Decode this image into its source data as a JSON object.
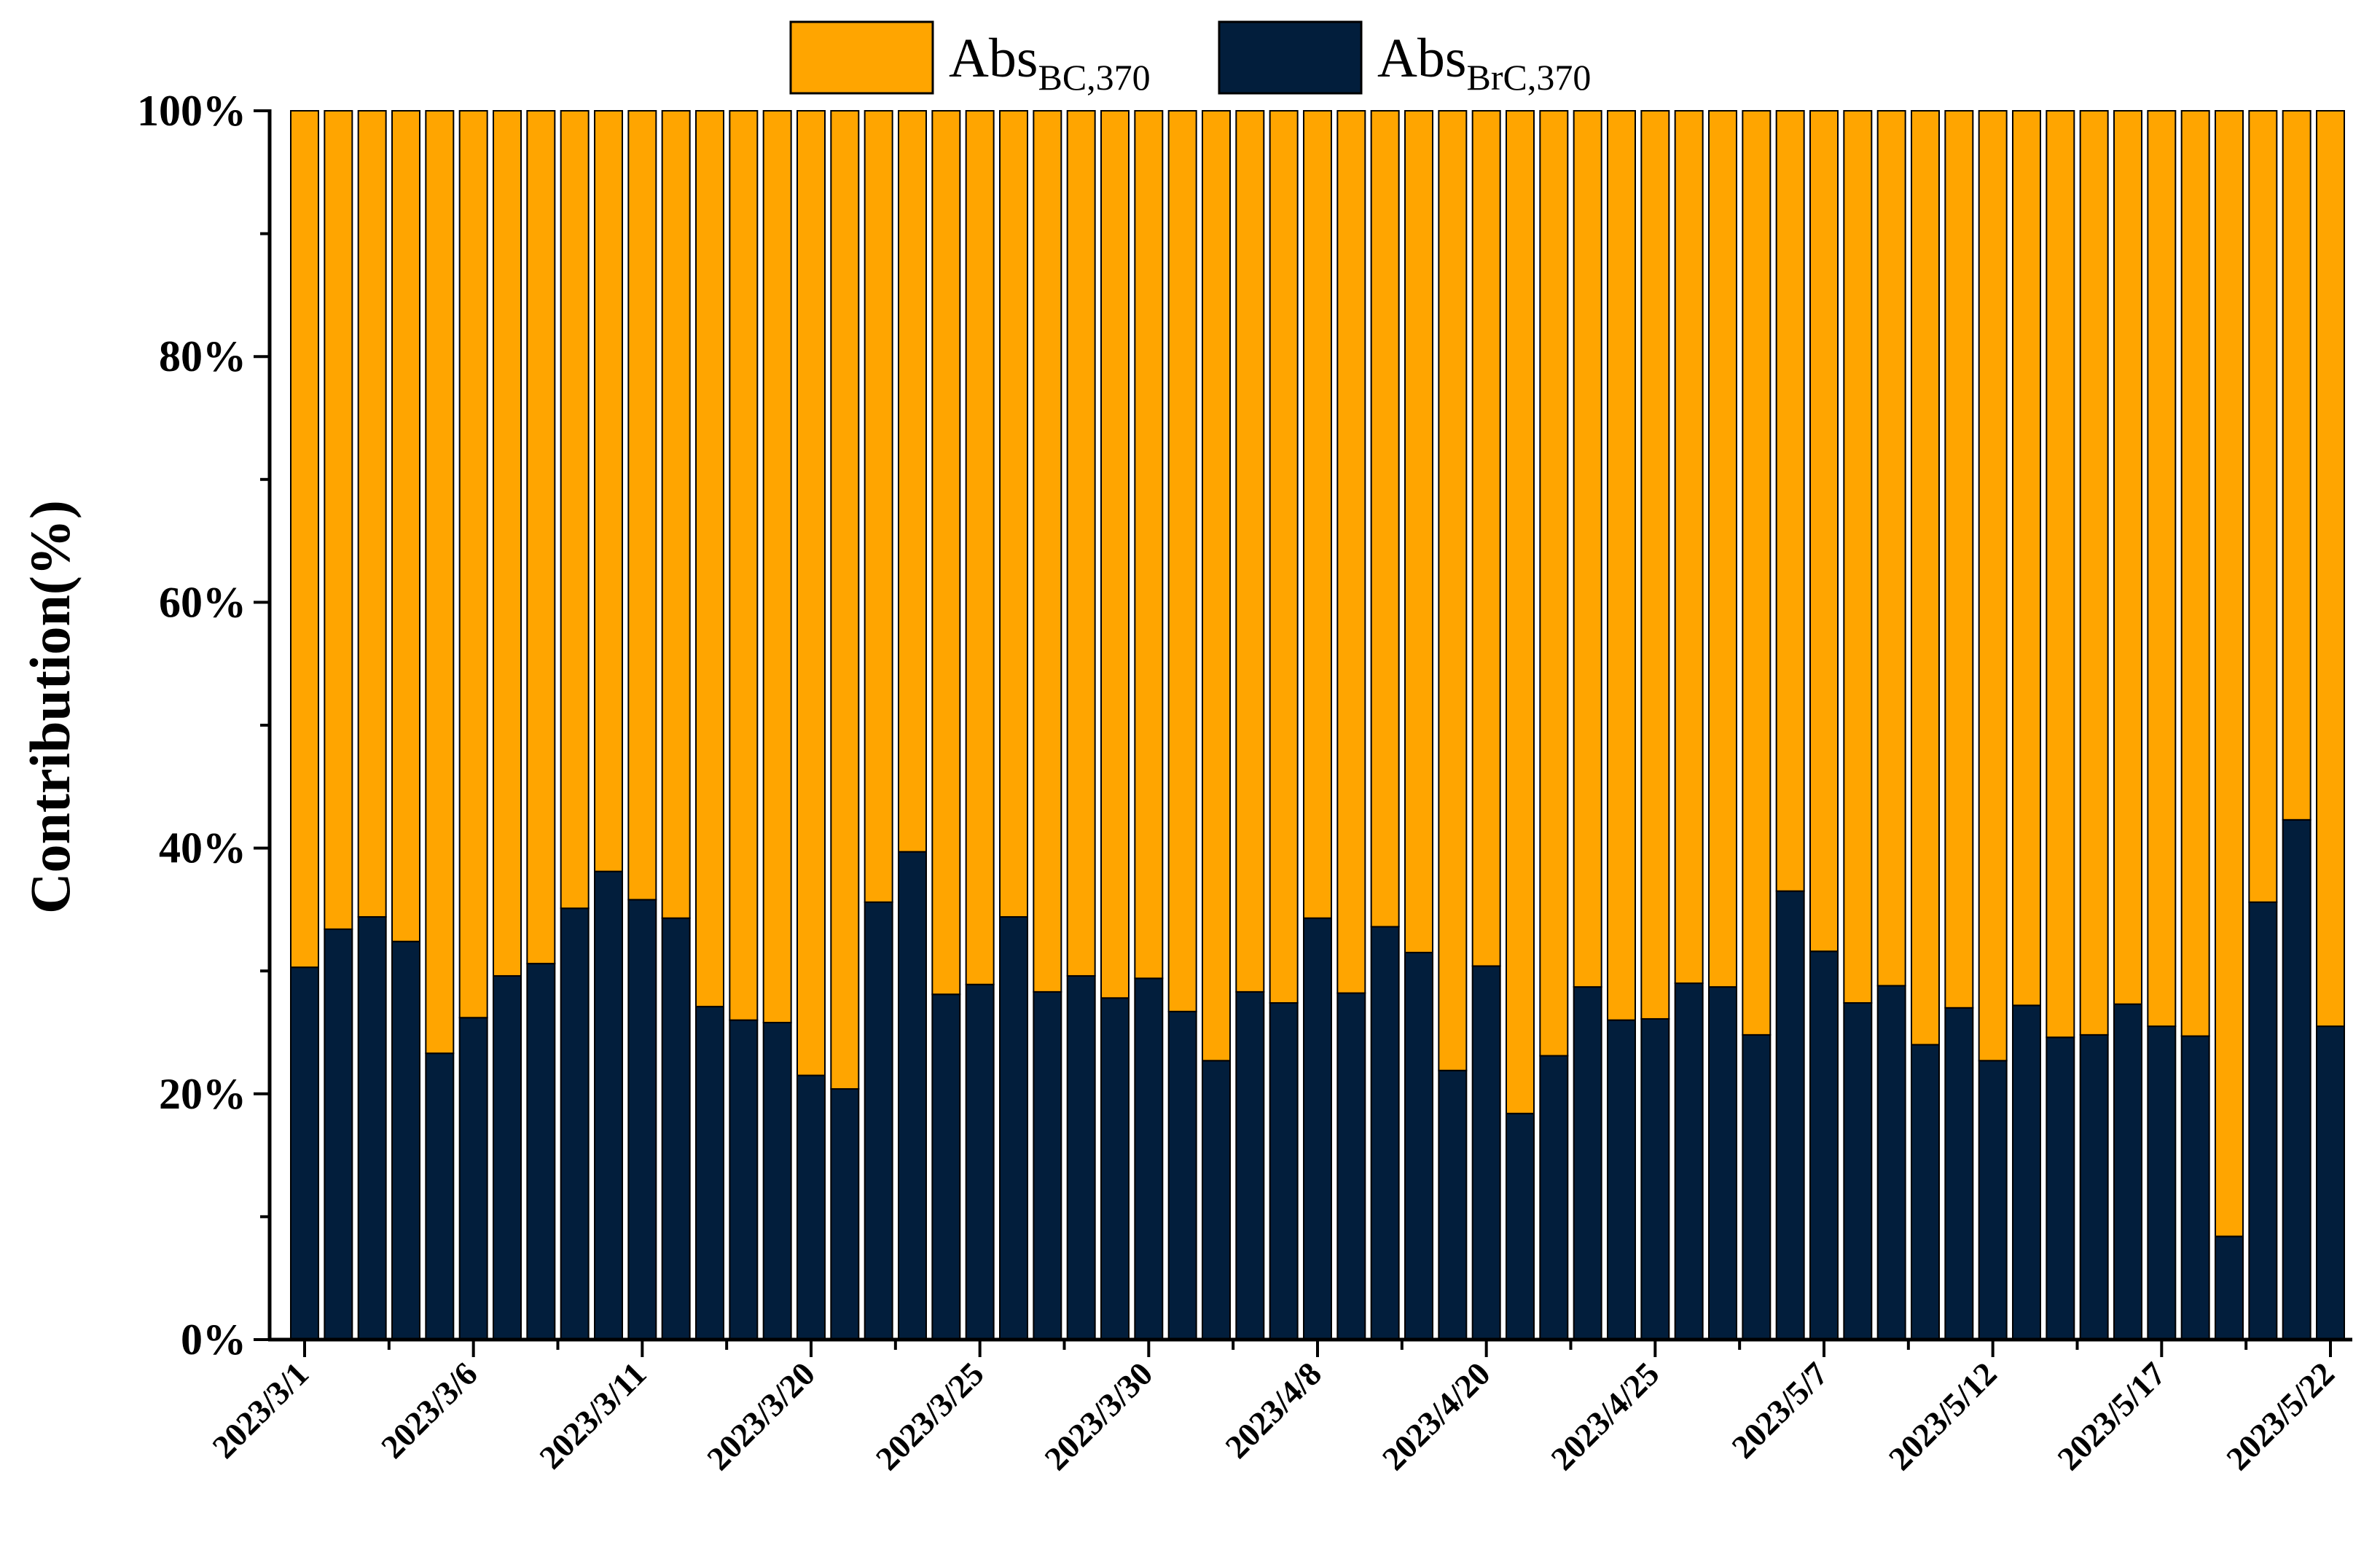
{
  "chart_data": {
    "type": "bar",
    "stacked": true,
    "percent_stacked": true,
    "ylabel": "Contribution(%)",
    "xlabel": "",
    "ylim": [
      0,
      100
    ],
    "y_ticks": [
      "0%",
      "20%",
      "40%",
      "60%",
      "80%",
      "100%"
    ],
    "x_tick_labels": [
      "2023/3/1",
      "2023/3/6",
      "2023/3/11",
      "2023/3/20",
      "2023/3/25",
      "2023/3/30",
      "2023/4/8",
      "2023/4/20",
      "2023/4/25",
      "2023/5/7",
      "2023/5/12",
      "2023/5/17",
      "2023/5/22"
    ],
    "x_tick_indices": [
      0,
      5,
      10,
      15,
      20,
      25,
      30,
      35,
      40,
      45,
      50,
      55,
      60
    ],
    "grid": false,
    "legend_position": "top-center",
    "series": [
      {
        "name_main": "Abs",
        "name_sub": "BrC,370",
        "color": "#021E3C",
        "values": [
          30.3,
          33.4,
          34.4,
          32.4,
          23.3,
          26.2,
          29.6,
          30.6,
          35.1,
          38.1,
          35.8,
          34.3,
          27.1,
          26.0,
          25.8,
          21.5,
          20.4,
          35.6,
          39.7,
          28.1,
          28.9,
          34.4,
          28.3,
          29.6,
          27.8,
          29.4,
          26.7,
          22.7,
          28.3,
          27.4,
          34.3,
          28.2,
          33.6,
          31.5,
          21.9,
          30.4,
          18.4,
          23.1,
          28.7,
          26.0,
          26.1,
          29.0,
          28.7,
          24.8,
          36.5,
          31.6,
          27.4,
          28.8,
          24.0,
          27.0,
          22.7,
          27.2,
          24.6,
          24.8,
          27.3,
          25.5,
          24.7,
          8.4,
          35.6,
          42.3,
          25.5
        ]
      },
      {
        "name_main": "Abs",
        "name_sub": "BC,370",
        "color": "#FFA500",
        "values": [
          69.7,
          66.6,
          65.6,
          67.6,
          76.7,
          73.8,
          70.4,
          69.4,
          64.9,
          61.9,
          64.2,
          65.7,
          72.9,
          74.0,
          74.2,
          78.5,
          79.6,
          64.4,
          60.3,
          71.9,
          71.1,
          65.6,
          71.7,
          70.4,
          72.2,
          70.6,
          73.3,
          77.3,
          71.7,
          72.6,
          65.7,
          71.8,
          66.4,
          68.5,
          78.1,
          69.6,
          81.6,
          76.9,
          71.3,
          74.0,
          73.9,
          71.0,
          71.3,
          75.2,
          63.5,
          68.4,
          72.6,
          71.2,
          76.0,
          73.0,
          77.3,
          72.8,
          75.4,
          75.2,
          72.7,
          74.5,
          75.3,
          91.6,
          64.4,
          57.7,
          74.5
        ]
      }
    ]
  },
  "colors": {
    "brc": "#021E3C",
    "bc": "#FFA500",
    "axis": "#000000"
  }
}
